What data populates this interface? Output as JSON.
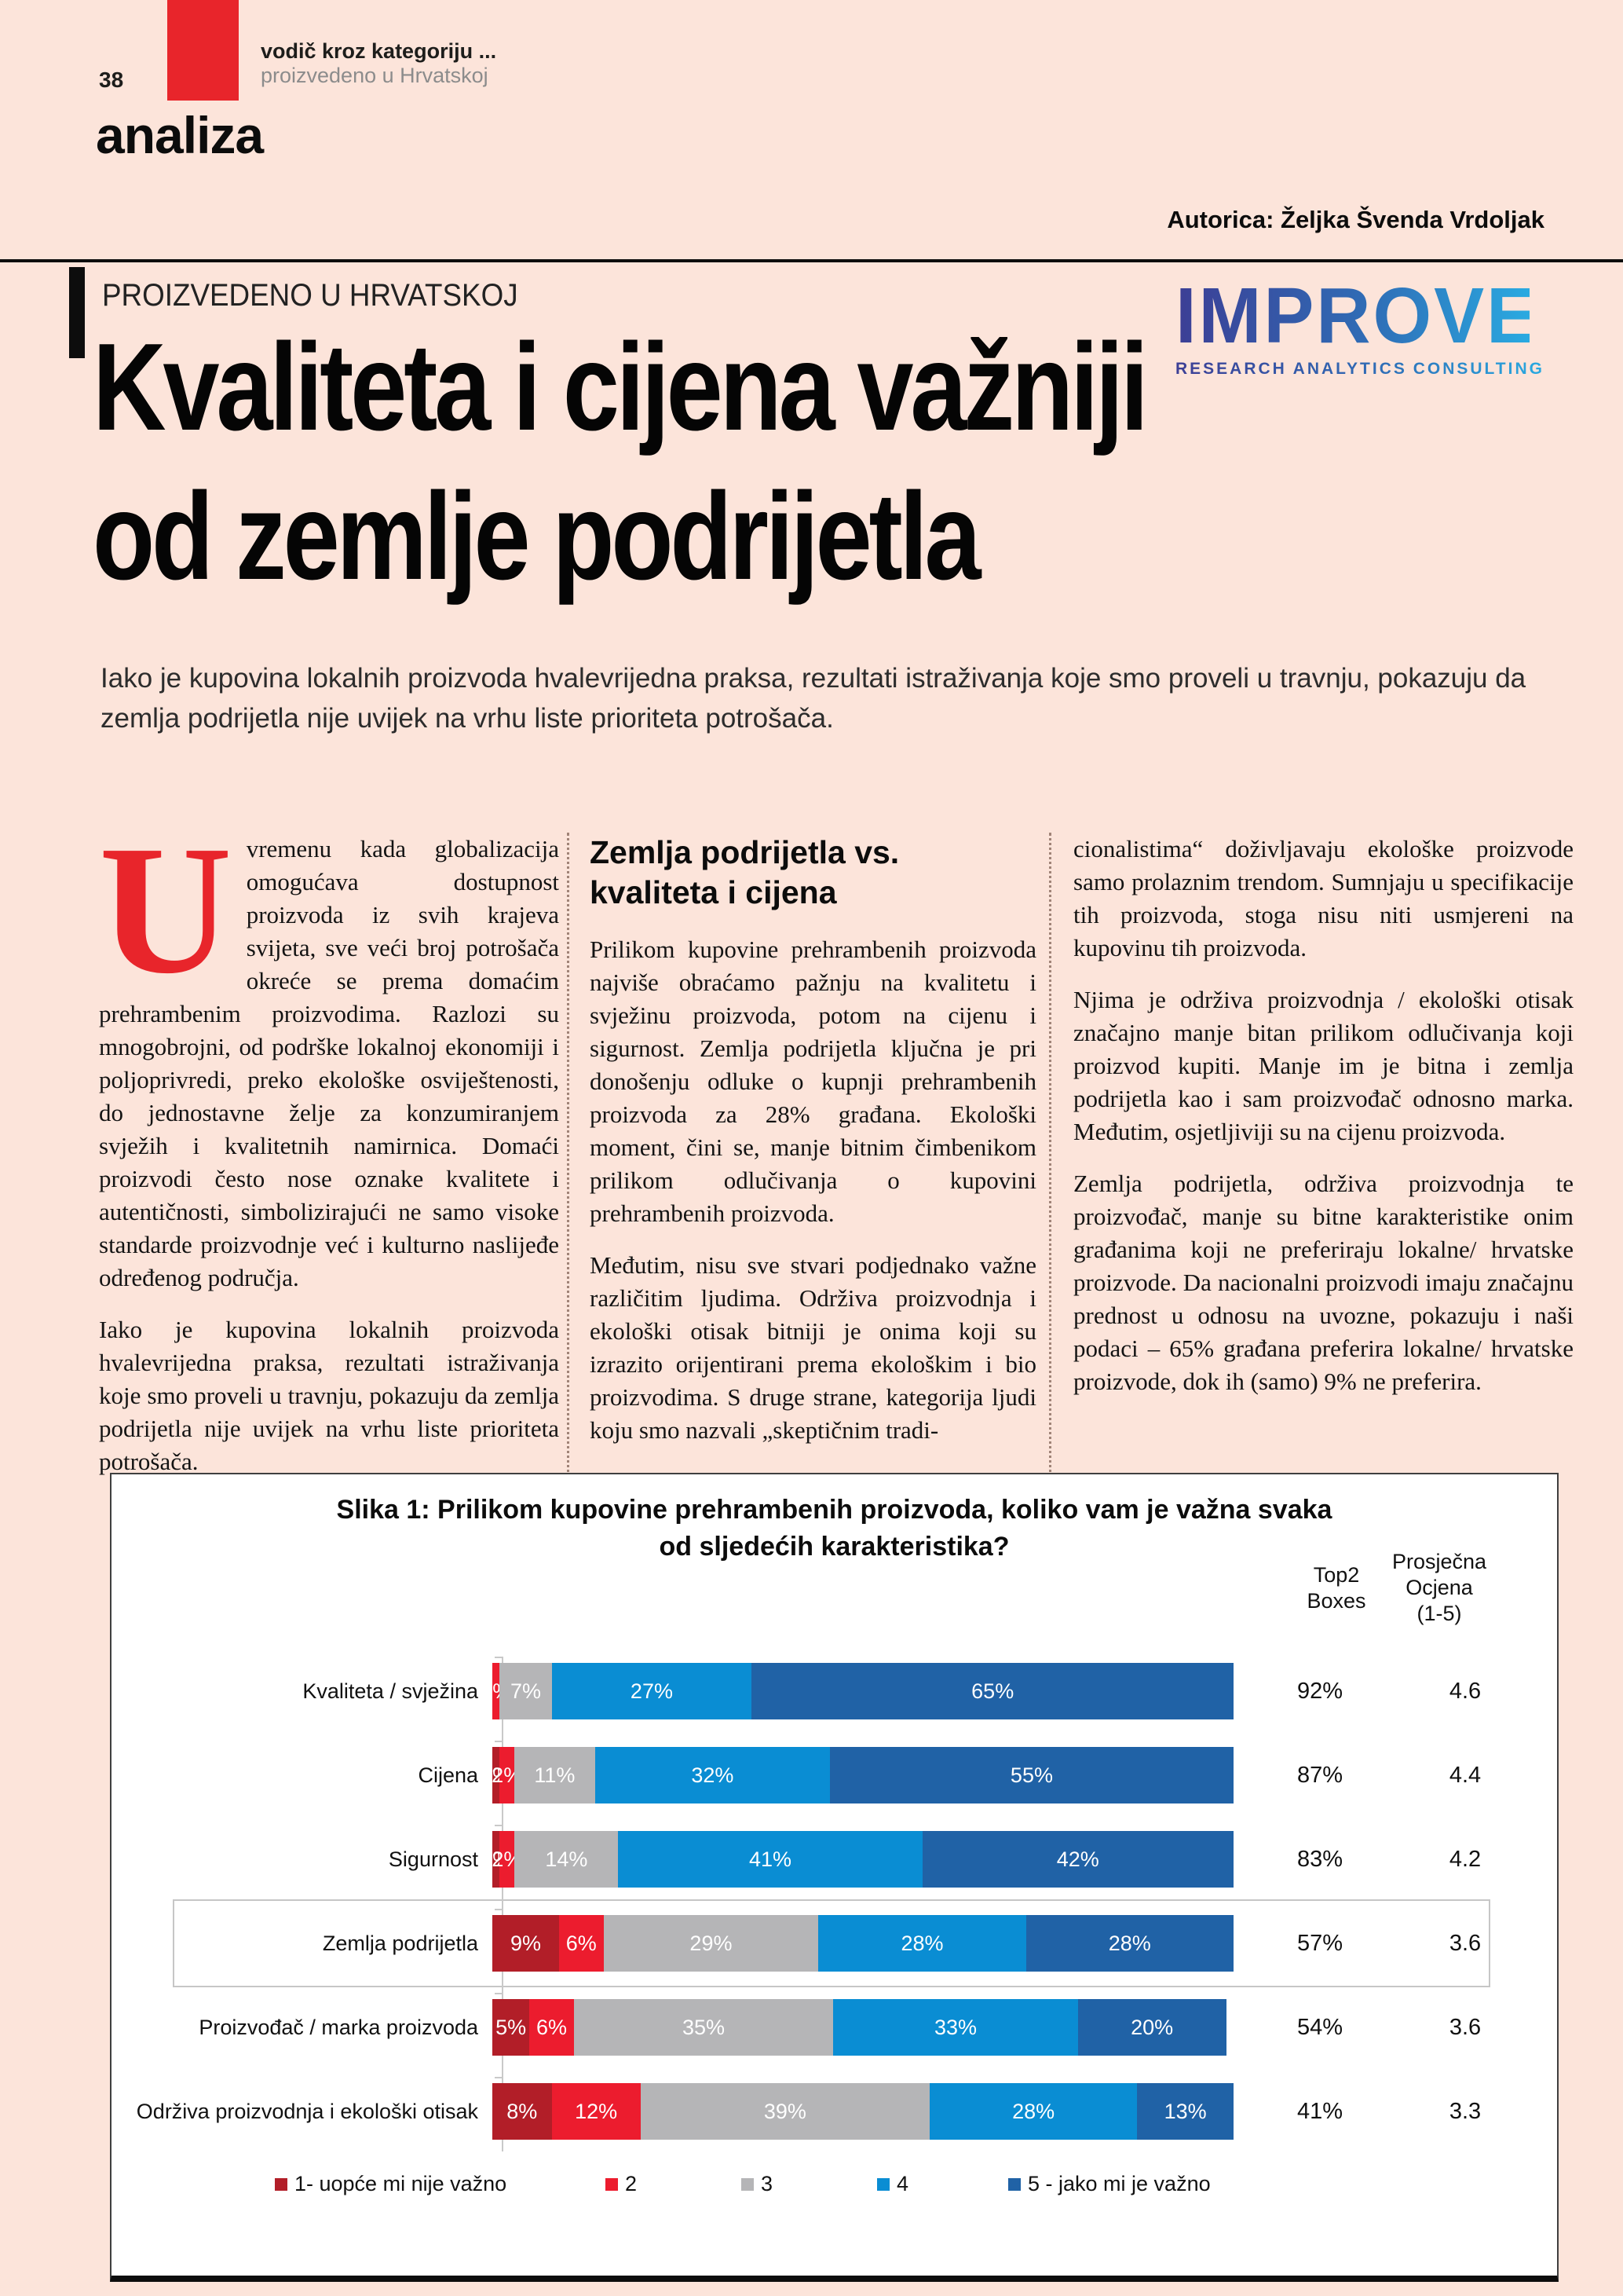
{
  "page": {
    "number": "38",
    "kicker_line1": "vodič kroz kategoriju ...",
    "kicker_line2": "proizvedeno u Hrvatskoj",
    "section": "analiza",
    "author": "Autorica: Željka Švenda Vrdoljak",
    "eyebrow": "PROIZVEDENO U HRVATSKOJ"
  },
  "logo": {
    "word": "IMPROVE",
    "tagline_words": [
      "RESEARCH",
      "ANALYTICS",
      "CONSULTING"
    ]
  },
  "headline": {
    "line1": "Kvaliteta i cijena važniji",
    "line2": "od zemlje podrijetla"
  },
  "lead": "Iako je kupovina lokalnih proizvoda hvalevrijedna praksa, rezultati istraživanja koje smo proveli u travnju, pokazuju da zemlja podrijetla nije uvijek na vrhu liste prioriteta potrošača.",
  "columns": {
    "col1": {
      "dropcap": "U",
      "p1": "vremenu kada globalizacija omogućava dostupnost proizvoda iz svih krajeva svijeta, sve veći broj potrošača okreće se prema domaćim prehrambenim proizvodima. Razlozi su mnogobrojni, od podrške lokalnoj ekonomiji i poljoprivredi, preko ekološke osviještenosti, do jednostavne želje za konzumiranjem svježih i kvalitetnih namirnica. Domaći proizvodi često nose oznake kvalitete i autentičnosti, simbolizirajući ne samo visoke standarde proizvodnje već i kulturno naslijeđe određenog područja.",
      "p2": "Iako je kupovina lokalnih proizvoda hvalevrijedna praksa, rezultati istraživanja koje smo proveli u travnju, pokazuju da zemlja podrijetla nije uvijek na vrhu liste prioriteta potrošača."
    },
    "col2": {
      "heading": "Zemlja podrijetla vs. kvaliteta i cijena",
      "p1": "Prilikom kupovine prehrambenih proizvoda najviše obraćamo pažnju na kvalitetu i svježinu proizvoda, potom na cijenu i sigurnost. Zemlja podrijetla ključna je pri donošenju odluke o kupnji prehrambenih proizvoda za 28% građana. Ekološki moment, čini se, manje bitnim čimbenikom prilikom odlučivanja o kupovini prehrambenih proizvoda.",
      "p2": "Međutim, nisu sve stvari podjednako važne različitim ljudima. Održiva proizvodnja i ekološki otisak bitniji je onima koji su izrazito orijentirani prema ekološkim i bio proizvodima. S druge strane, kategorija ljudi koju smo nazvali „skeptičnim tradi-"
    },
    "col3": {
      "p1": "cionalistima“ doživljavaju ekološke proizvode samo prolaznim trendom. Sumnjaju u specifikacije tih proizvoda, stoga nisu niti usmjereni na kupovinu tih proizvoda.",
      "p2": "Njima je održiva proizvodnja / ekološki otisak značajno manje bitan prilikom odlučivanja koji proizvod kupiti. Manje im je bitna i zemlja podrijetla kao i sam proizvođač odnosno marka. Međutim, osjetljiviji su na cijenu proizvoda.",
      "p3": "Zemlja podrijetla, održiva proizvodnja te proizvođač, manje su bitne karakteristike onim građanima koji ne preferiraju lokalne/ hrvatske proizvode. Da nacionalni proizvodi imaju značajnu prednost u odnosu na uvozne, pokazuju i naši podaci – 65% građana preferira lokalne/ hrvatske proizvode, dok ih (samo) 9% ne preferira."
    }
  },
  "colors": {
    "page_bg": "#fce4da",
    "accent_red": "#e8252b",
    "logo_gradient": [
      "#3c3e95",
      "#2f6db6",
      "#2aaae1"
    ]
  },
  "chart_data": {
    "type": "bar",
    "stacked": true,
    "orientation": "horizontal",
    "title_lines": [
      "Slika 1: Prilikom kupovine prehrambenih proizvoda, koliko vam je važna svaka",
      "od sljedećih karakteristika?"
    ],
    "top2_header_lines": [
      "Top2",
      "Boxes"
    ],
    "avg_header_lines": [
      "Prosječna",
      "Ocjena",
      "(1-5)"
    ],
    "categories": [
      "Kvaliteta / svježina",
      "Cijena",
      "Sigurnost",
      "Zemlja podrijetla",
      "Proizvođač / marka proizvoda",
      "Održiva proizvodnja i ekološki otisak"
    ],
    "series": [
      {
        "name": "1- uopće mi nije važno",
        "color": "#b21e28",
        "values": [
          0,
          1,
          1,
          9,
          5,
          8
        ]
      },
      {
        "name": "2",
        "color": "#ec1c2e",
        "values": [
          1,
          2,
          2,
          6,
          6,
          12
        ]
      },
      {
        "name": "3",
        "color": "#b5b5b7",
        "values": [
          7,
          11,
          14,
          29,
          35,
          39
        ]
      },
      {
        "name": "4",
        "color": "#0a8dd3",
        "values": [
          27,
          32,
          41,
          28,
          33,
          28
        ]
      },
      {
        "name": "5 - jako mi je važno",
        "color": "#2062a6",
        "values": [
          65,
          55,
          42,
          28,
          20,
          13
        ]
      }
    ],
    "top2_values": [
      "92%",
      "87%",
      "83%",
      "57%",
      "54%",
      "41%"
    ],
    "avg_values": [
      "4.6",
      "4.4",
      "4.2",
      "3.6",
      "3.6",
      "3.3"
    ],
    "highlight_index": 3,
    "xlim": [
      0,
      100
    ],
    "legend_position": "bottom",
    "legend_lefts": [
      208,
      629,
      802,
      975,
      1142
    ]
  }
}
